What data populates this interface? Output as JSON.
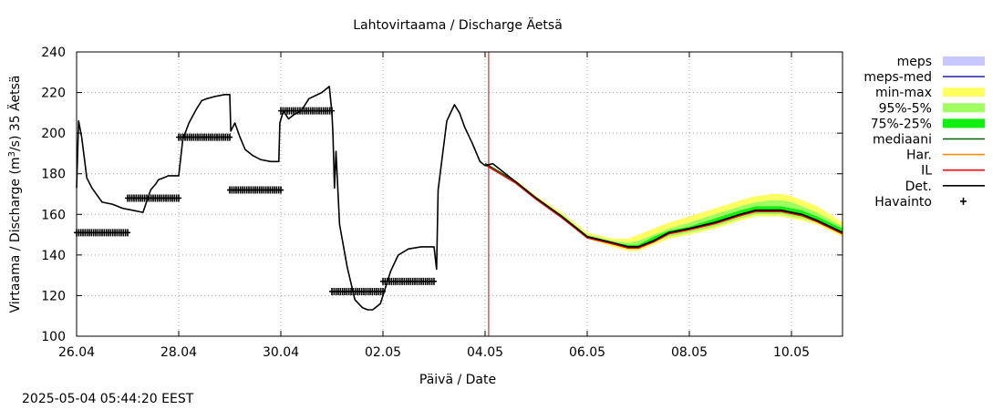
{
  "chart_data": {
    "type": "line",
    "title": "Lahtovirtaama / Discharge  Äetsä",
    "xlabel": "Päivä / Date",
    "ylabel_prefix": "Virtaama / Discharge (m",
    "ylabel_sup": "3",
    "ylabel_suffix": "/s)  35 Äetsä",
    "ylim": [
      100,
      240
    ],
    "yticks": [
      100,
      120,
      140,
      160,
      180,
      200,
      220,
      240
    ],
    "xlim_days": [
      0,
      15
    ],
    "xticks": [
      {
        "day": 0,
        "label": "26.04"
      },
      {
        "day": 2,
        "label": "28.04"
      },
      {
        "day": 4,
        "label": "30.04"
      },
      {
        "day": 6,
        "label": "02.05"
      },
      {
        "day": 8,
        "label": "04.05"
      },
      {
        "day": 10,
        "label": "06.05"
      },
      {
        "day": 12,
        "label": "08.05"
      },
      {
        "day": 14,
        "label": "10.05"
      }
    ],
    "grid": true,
    "forecast_start_day": 8.07,
    "legend": [
      {
        "label": "meps",
        "color": "#c8c8ff",
        "style": "fill"
      },
      {
        "label": "meps-med",
        "color": "#3030b0",
        "style": "line"
      },
      {
        "label": "min-max",
        "color": "#ffff60",
        "style": "fill"
      },
      {
        "label": "95%-5%",
        "color": "#a0ff60",
        "style": "fill"
      },
      {
        "label": "75%-25%",
        "color": "#10f010",
        "style": "fill"
      },
      {
        "label": "mediaani",
        "color": "#006000",
        "style": "line"
      },
      {
        "label": "Har.",
        "color": "#ff8c00",
        "style": "line"
      },
      {
        "label": "IL",
        "color": "#ff0000",
        "style": "line"
      },
      {
        "label": "Det.",
        "color": "#000000",
        "style": "line"
      },
      {
        "label": "Havainto",
        "color": "#000000",
        "style": "plus"
      }
    ],
    "series": [
      {
        "name": "Det.",
        "x": [
          0,
          0.04,
          0.1,
          0.2,
          0.3,
          0.5,
          0.7,
          0.9,
          1.1,
          1.3,
          1.45,
          1.55,
          1.6,
          1.7,
          1.8,
          2.0,
          2.08,
          2.2,
          2.35,
          2.45,
          2.55,
          2.7,
          2.9,
          3.0,
          3.02,
          3.1,
          3.2,
          3.3,
          3.45,
          3.6,
          3.8,
          3.96,
          3.98,
          4.05,
          4.15,
          4.25,
          4.4,
          4.55,
          4.8,
          4.95,
          5.0,
          5.02,
          5.05,
          5.08,
          5.15,
          5.3,
          5.45,
          5.6,
          5.7,
          5.8,
          5.95,
          6.05,
          6.15,
          6.3,
          6.5,
          6.75,
          6.9,
          7.0,
          7.05,
          7.08,
          7.15,
          7.25,
          7.4,
          7.5,
          7.6,
          7.75,
          7.9,
          8.0,
          8.15,
          8.3,
          8.6,
          9.0,
          9.5,
          10.0,
          10.5,
          10.8,
          11.0,
          11.3,
          11.6,
          12.0,
          12.5,
          13.0,
          13.3,
          13.6,
          13.8,
          14.0,
          14.2,
          14.5,
          15.0
        ],
        "y": [
          173,
          206,
          198,
          178,
          173,
          166,
          165,
          163,
          162,
          161,
          172,
          175,
          177,
          178,
          179,
          179,
          197,
          205,
          212,
          216,
          217,
          218,
          219,
          219,
          201,
          205,
          198,
          192,
          189,
          187,
          186,
          186,
          205,
          211,
          207,
          209,
          211,
          217,
          220,
          223,
          210,
          200,
          173,
          191,
          155,
          134,
          118,
          114,
          113,
          113,
          116,
          124,
          132,
          140,
          143,
          144,
          144,
          144,
          133,
          172,
          186,
          206,
          214,
          210,
          203,
          195,
          186,
          184,
          185,
          182,
          176,
          168,
          159,
          149,
          146,
          144,
          144,
          147,
          151,
          153,
          156,
          160,
          162,
          162,
          162,
          161,
          160,
          157,
          151
        ]
      },
      {
        "name": "Havainto",
        "segments": [
          {
            "x0": 0,
            "x1": 1.0,
            "y": 151
          },
          {
            "x0": 1.0,
            "x1": 2.0,
            "y": 168
          },
          {
            "x0": 2.0,
            "x1": 3.0,
            "y": 198
          },
          {
            "x0": 3.0,
            "x1": 4.0,
            "y": 172
          },
          {
            "x0": 4.0,
            "x1": 5.0,
            "y": 211
          },
          {
            "x0": 5.0,
            "x1": 6.0,
            "y": 122
          },
          {
            "x0": 6.0,
            "x1": 7.0,
            "y": 127
          }
        ]
      },
      {
        "name": "forecast-bands",
        "x": [
          8.0,
          8.6,
          9.0,
          9.5,
          10.0,
          10.5,
          10.8,
          11.0,
          11.3,
          11.6,
          12.0,
          12.5,
          13.0,
          13.3,
          13.6,
          13.8,
          14.0,
          14.2,
          14.5,
          15.0
        ],
        "min": [
          185,
          175,
          167,
          158,
          148,
          144,
          142,
          142,
          145,
          148,
          150,
          153,
          157,
          159,
          159,
          159,
          158,
          157,
          155,
          149
        ],
        "max": [
          185,
          177,
          169,
          161,
          151,
          148,
          148,
          150,
          153,
          156,
          159,
          163,
          167,
          169,
          170,
          170,
          169,
          167,
          164,
          156
        ],
        "p5": [
          185,
          176,
          168,
          159,
          149,
          145,
          143,
          143,
          146,
          149,
          151,
          154,
          158,
          160,
          160,
          160,
          159,
          158,
          156,
          150
        ],
        "p95": [
          185,
          176,
          168,
          160,
          150,
          147,
          146,
          147,
          150,
          153,
          156,
          160,
          164,
          166,
          167,
          167,
          166,
          164,
          161,
          154
        ],
        "p25": [
          185,
          176,
          168,
          159,
          149,
          146,
          144,
          144,
          147,
          151,
          153,
          156,
          160,
          161,
          161,
          161,
          160,
          159,
          157,
          151
        ],
        "p75": [
          185,
          176,
          168,
          159,
          149,
          146,
          145,
          145,
          149,
          152,
          154,
          158,
          162,
          164,
          164,
          164,
          163,
          162,
          159,
          153
        ],
        "median": [
          185,
          176,
          168,
          159,
          149,
          146,
          144,
          144,
          147,
          151,
          153,
          156,
          160,
          162,
          162,
          162,
          161,
          160,
          157,
          151
        ]
      }
    ]
  },
  "timestamp": "2025-05-04  05:44:20 EEST"
}
